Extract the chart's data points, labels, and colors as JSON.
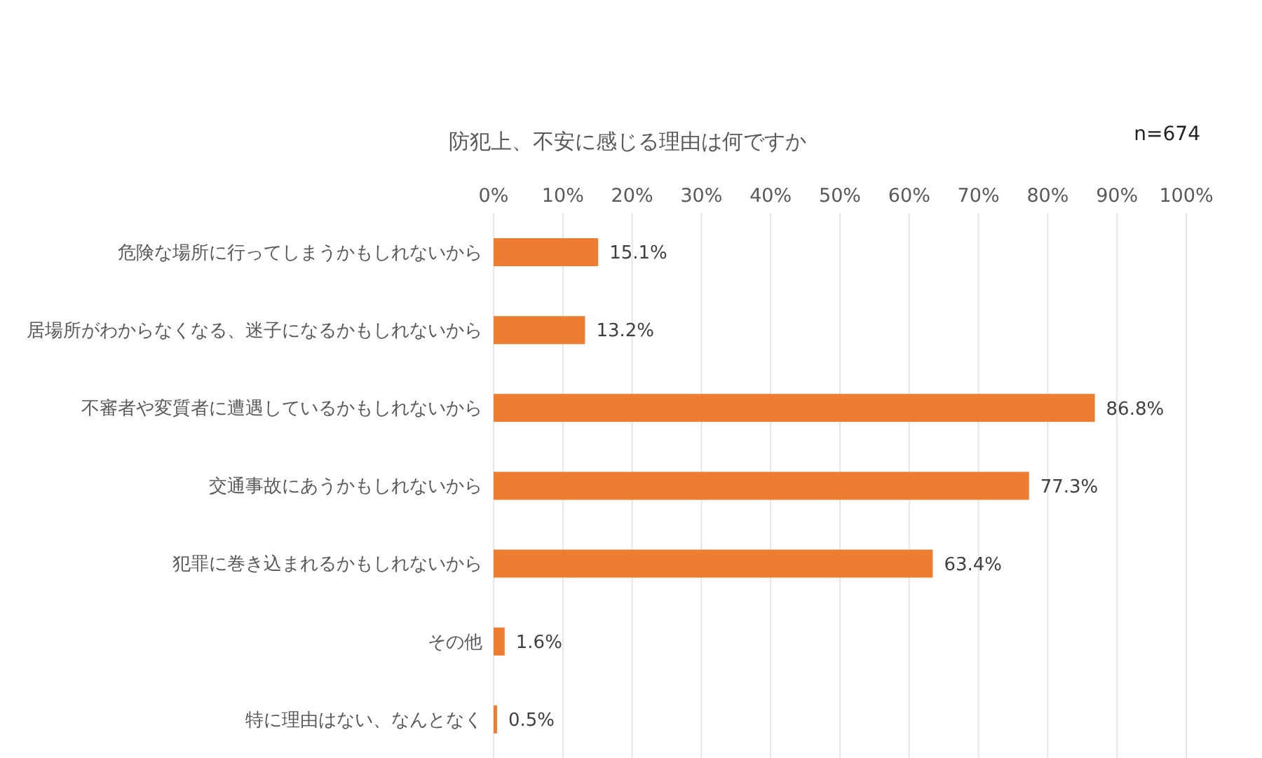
{
  "chart_data": {
    "type": "bar",
    "orientation": "horizontal",
    "title": "防犯上、不安に感じる理由は何ですか",
    "annotations": [
      "n=674"
    ],
    "categories": [
      "危険な場所に行ってしまうかもしれないから",
      "居場所がわからなくなる、迷子になるかもしれないから",
      "不審者や変質者に遭遇しているかもしれないから",
      "交通事故にあうかもしれないから",
      "犯罪に巻き込まれるかもしれないから",
      "その他",
      "特に理由はない、なんとなく"
    ],
    "values": [
      15.1,
      13.2,
      86.8,
      77.3,
      63.4,
      1.6,
      0.5
    ],
    "value_labels": [
      "15.1%",
      "13.2%",
      "86.8%",
      "77.3%",
      "63.4%",
      "1.6%",
      "0.5%"
    ],
    "color": "#ed7d31",
    "xlim": [
      0,
      100
    ],
    "xticks": [
      {
        "value": 0,
        "label": "0%"
      },
      {
        "value": 10,
        "label": "10%"
      },
      {
        "value": 20,
        "label": "20%"
      },
      {
        "value": 30,
        "label": "30%"
      },
      {
        "value": 40,
        "label": "40%"
      },
      {
        "value": 50,
        "label": "50%"
      },
      {
        "value": 60,
        "label": "60%"
      },
      {
        "value": 70,
        "label": "70%"
      },
      {
        "value": 80,
        "label": "80%"
      },
      {
        "value": 90,
        "label": "90%"
      },
      {
        "value": 100,
        "label": "100%"
      }
    ],
    "grid": "x"
  }
}
